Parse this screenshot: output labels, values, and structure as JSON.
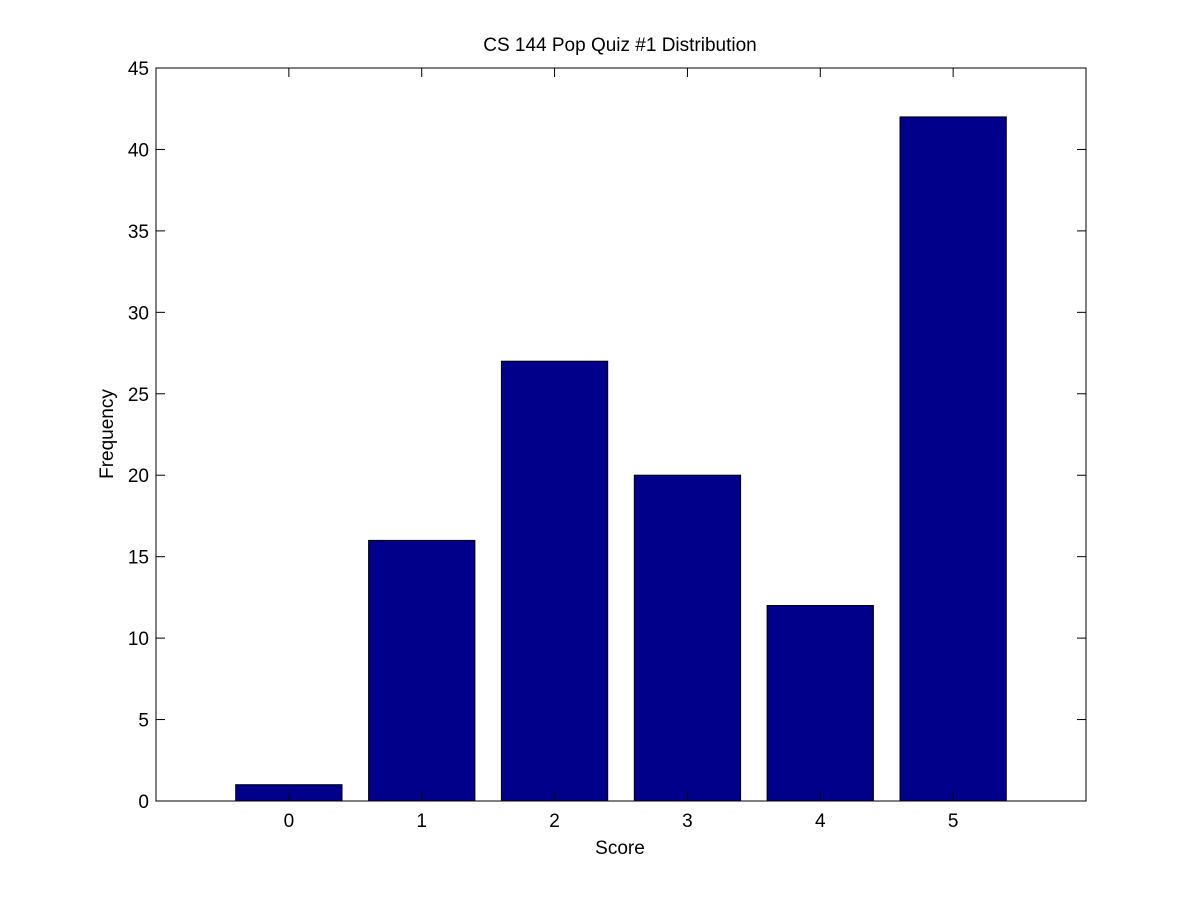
{
  "chart_data": {
    "type": "bar",
    "title": "CS 144 Pop Quiz #1 Distribution",
    "xlabel": "Score",
    "ylabel": "Frequency",
    "categories": [
      "0",
      "1",
      "2",
      "3",
      "4",
      "5"
    ],
    "values": [
      1,
      16,
      27,
      20,
      12,
      42
    ],
    "xlim": [
      -1,
      6
    ],
    "ylim": [
      0,
      45
    ],
    "yticks": [
      0,
      5,
      10,
      15,
      20,
      25,
      30,
      35,
      40,
      45
    ],
    "bar_color": "#00008B",
    "grid": false,
    "legend": "none"
  }
}
